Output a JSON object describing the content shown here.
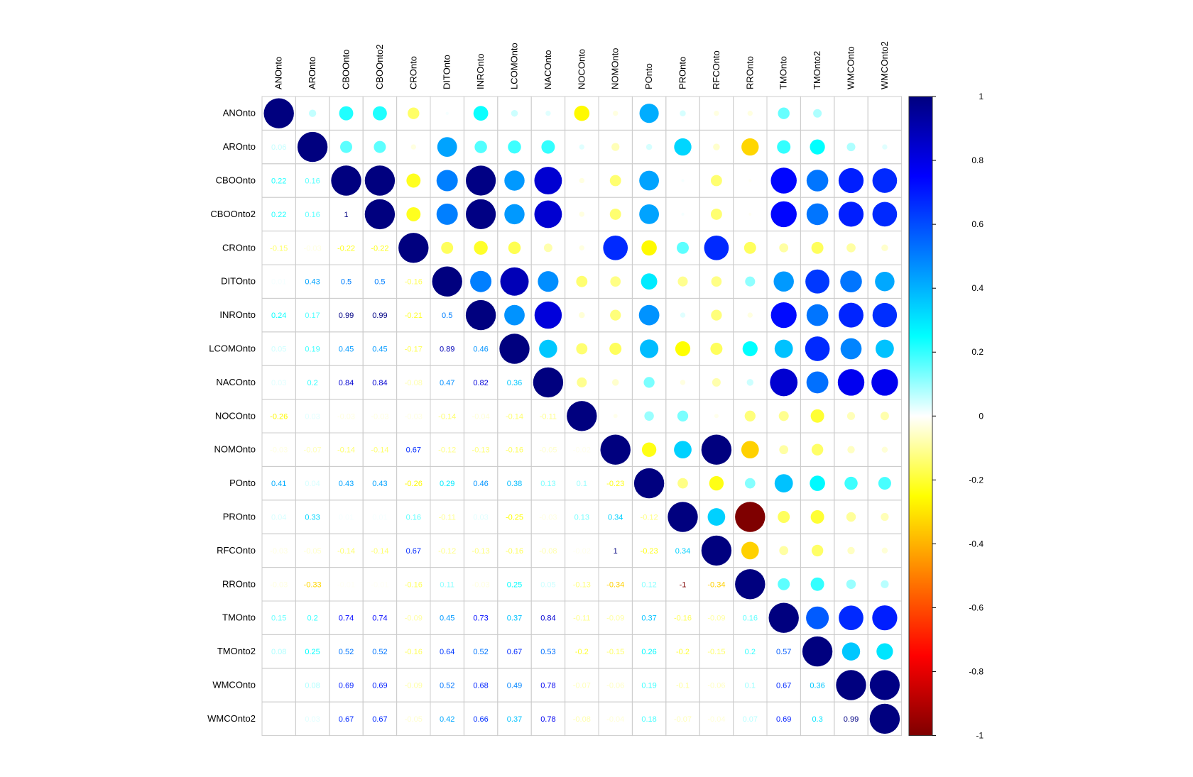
{
  "chart_data": {
    "type": "heatmap",
    "variables": [
      "ANOnto",
      "AROnto",
      "CBOOnto",
      "CBOOnto2",
      "CROnto",
      "DITOnto",
      "INROnto",
      "LCOMOnto",
      "NACOnto",
      "NOCOnto",
      "NOMOnto",
      "POnto",
      "PROnto",
      "RFCOnto",
      "RROnto",
      "TMOnto",
      "TMOnto2",
      "WMCOnto",
      "WMCOnto2"
    ],
    "lower_labels": [
      [],
      [
        "0.06"
      ],
      [
        "0.22",
        "0.16"
      ],
      [
        "0.22",
        "0.16",
        "1"
      ],
      [
        "-0.15",
        "-0.03",
        "-0.22",
        "-0.22"
      ],
      [
        "0.01",
        "0.43",
        "0.5",
        "0.5",
        "-0.16"
      ],
      [
        "0.24",
        "0.17",
        "0.99",
        "0.99",
        "-0.21",
        "0.5"
      ],
      [
        "0.05",
        "0.19",
        "0.45",
        "0.45",
        "-0.17",
        "0.89",
        "0.46"
      ],
      [
        "0.03",
        "0.2",
        "0.84",
        "0.84",
        "-0.08",
        "0.47",
        "0.82",
        "0.36"
      ],
      [
        "-0.26",
        "0.03",
        "-0.03",
        "-0.03",
        "-0.03",
        "-0.14",
        "-0.04",
        "-0.14",
        "-0.11"
      ],
      [
        "-0.03",
        "-0.07",
        "-0.14",
        "-0.14",
        "0.67",
        "-0.12",
        "-0.13",
        "-0.16",
        "-0.05",
        "-0.02"
      ],
      [
        "0.41",
        "0.04",
        "0.43",
        "0.43",
        "-0.26",
        "0.29",
        "0.46",
        "0.38",
        "0.13",
        "0.1",
        "-0.23"
      ],
      [
        "0.04",
        "0.33",
        "0.01",
        "0.01",
        "0.16",
        "-0.11",
        "0.03",
        "-0.25",
        "-0.03",
        "0.13",
        "0.34",
        "-0.12"
      ],
      [
        "-0.03",
        "-0.05",
        "-0.14",
        "-0.14",
        "0.67",
        "-0.12",
        "-0.13",
        "-0.16",
        "-0.08",
        "-0.02",
        "1",
        "-0.23",
        "0.34"
      ],
      [
        "-0.03",
        "-0.33",
        "-0.01",
        "-0.01",
        "-0.16",
        "0.11",
        "-0.03",
        "0.25",
        "0.05",
        "-0.13",
        "-0.34",
        "0.12",
        "-1",
        "-0.34"
      ],
      [
        "0.15",
        "0.2",
        "0.74",
        "0.74",
        "-0.09",
        "0.45",
        "0.73",
        "0.37",
        "0.84",
        "-0.11",
        "-0.09",
        "0.37",
        "-0.16",
        "-0.09",
        "0.16"
      ],
      [
        "0.08",
        "0.25",
        "0.52",
        "0.52",
        "-0.16",
        "0.64",
        "0.52",
        "0.67",
        "0.53",
        "-0.2",
        "-0.15",
        "0.26",
        "-0.2",
        "-0.15",
        "0.2",
        "0.57"
      ],
      [
        "",
        "0.08",
        "0.69",
        "0.69",
        "-0.09",
        "0.52",
        "0.68",
        "0.49",
        "0.78",
        "-0.07",
        "-0.06",
        "0.19",
        "-0.1",
        "-0.06",
        "0.1",
        "0.67",
        "0.36"
      ],
      [
        "",
        "0.03",
        "0.67",
        "0.67",
        "-0.05",
        "0.42",
        "0.66",
        "0.37",
        "0.78",
        "-0.08",
        "-0.04",
        "0.18",
        "-0.07",
        "-0.04",
        "0.07",
        "0.69",
        "0.3",
        "0.99"
      ]
    ],
    "colorbar_ticks": [
      "1",
      "0.8",
      "0.6",
      "0.4",
      "0.2",
      "0",
      "-0.2",
      "-0.4",
      "-0.6",
      "-0.8",
      "-1"
    ],
    "colorbar_values": [
      1,
      0.8,
      0.6,
      0.4,
      0.2,
      0,
      -0.2,
      -0.4,
      -0.6,
      -0.8,
      -1
    ],
    "value_range": [
      -1,
      1
    ],
    "palette": [
      "#7F0000",
      "#FF0000",
      "#FF7F00",
      "#FFFF00",
      "#FFFFFF",
      "#00FFFF",
      "#007FFF",
      "#0000FF",
      "#00007F"
    ],
    "grid": true,
    "legend_placement": "right"
  }
}
